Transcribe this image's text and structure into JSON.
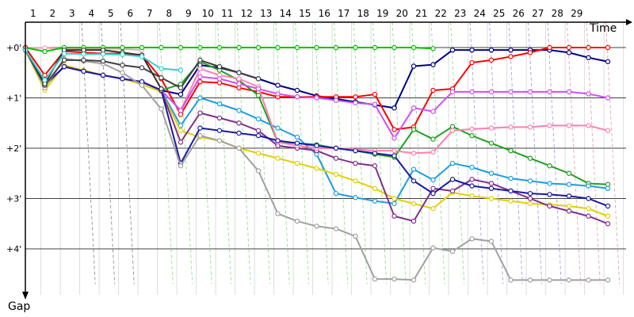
{
  "chart_data": {
    "type": "line",
    "xlabel": "Time",
    "ylabel": "Gap",
    "lap_labels": [
      "1",
      "2",
      "3",
      "4",
      "5",
      "6",
      "7",
      "8",
      "9",
      "10",
      "11",
      "12",
      "13",
      "14",
      "15",
      "16",
      "17",
      "18",
      "19",
      "20",
      "21",
      "22",
      "23",
      "24",
      "25",
      "26",
      "27",
      "28",
      "29"
    ],
    "y_tick_labels": [
      "+0'",
      "+1'",
      "+2'",
      "+3'",
      "+4'"
    ],
    "y_ticks": [
      0,
      1,
      2,
      3,
      4
    ],
    "ylim": [
      0,
      5.0
    ],
    "xlim": [
      0,
      30.4
    ],
    "grid": true,
    "series": [
      {
        "color": "#e8a8b8",
        "x": [
          0,
          1,
          2,
          3,
          4,
          5,
          6
        ],
        "y": [
          0.01,
          0.01,
          0.02,
          0.02,
          0.02,
          0.03,
          0.05
        ]
      },
      {
        "color": "#00c000",
        "x": [
          0,
          1,
          2,
          3,
          4,
          5,
          6,
          7,
          8,
          9,
          10,
          11,
          12,
          13,
          14,
          15,
          16,
          17,
          18,
          19,
          20,
          21
        ],
        "y": [
          0,
          0.08,
          0,
          0,
          0,
          0,
          0,
          0,
          0,
          0,
          0,
          0,
          0,
          0,
          0,
          0,
          0,
          0,
          0,
          0,
          0,
          0.02
        ]
      },
      {
        "color": "#000080",
        "x": [
          0,
          1,
          2,
          3,
          4,
          5,
          6,
          7,
          8,
          9,
          10,
          11,
          12,
          13,
          14,
          15,
          16,
          17,
          18,
          19,
          20,
          21,
          22,
          23,
          24,
          25,
          26,
          27,
          28,
          29,
          30
        ],
        "y": [
          0.05,
          0.75,
          0.38,
          0.47,
          0.55,
          0.62,
          0.68,
          0.85,
          0.93,
          0.35,
          0.4,
          0.5,
          0.62,
          0.75,
          0.85,
          0.96,
          1.02,
          1.08,
          1.14,
          1.2,
          0.37,
          0.34,
          0.05,
          0.05,
          0.05,
          0.05,
          0.05,
          0.05,
          0.1,
          0.2,
          0.28
        ]
      },
      {
        "color": "#ff0000",
        "x": [
          0,
          1,
          2,
          3,
          4,
          5,
          6,
          7,
          8,
          9,
          10,
          11,
          12,
          13,
          14,
          15,
          16,
          17,
          18,
          19,
          20,
          21,
          22,
          23,
          24,
          25,
          26,
          27,
          28,
          29,
          30
        ],
        "y": [
          0,
          0.55,
          0.07,
          0.1,
          0.12,
          0.12,
          0.15,
          0.62,
          1.33,
          0.68,
          0.7,
          0.8,
          0.88,
          0.98,
          0.98,
          0.98,
          0.98,
          0.98,
          0.93,
          1.63,
          1.58,
          0.85,
          0.82,
          0.3,
          0.25,
          0.18,
          0.1,
          0,
          0,
          0,
          0
        ]
      },
      {
        "color": "#20a020",
        "x": [
          0,
          1,
          2,
          3,
          4,
          5,
          6,
          7,
          8,
          9,
          10,
          11,
          12,
          13,
          14,
          15,
          16,
          17,
          18,
          19,
          20,
          21,
          22,
          23,
          24,
          25,
          26,
          27,
          28,
          29,
          30
        ],
        "y": [
          0.05,
          0.75,
          0.38,
          0.47,
          0.55,
          0.62,
          0.68,
          0.85,
          0.73,
          0.28,
          0.45,
          0.65,
          0.95,
          1.88,
          1.9,
          1.93,
          2.0,
          2.05,
          2.12,
          2.18,
          1.63,
          1.82,
          1.57,
          1.75,
          1.9,
          2.05,
          2.2,
          2.35,
          2.5,
          2.7,
          2.72
        ]
      },
      {
        "color": "#1e9de0",
        "x": [
          0,
          1,
          2,
          3,
          4,
          5,
          6,
          7,
          8,
          9,
          10,
          11,
          12,
          13,
          14,
          15,
          16,
          17,
          18,
          19,
          20,
          21,
          22,
          23,
          24,
          25,
          26,
          27,
          28,
          29,
          30
        ],
        "y": [
          0.05,
          0.75,
          0.38,
          0.47,
          0.55,
          0.62,
          0.68,
          0.85,
          1.55,
          1.0,
          1.12,
          1.25,
          1.42,
          1.6,
          1.78,
          2.12,
          2.9,
          2.98,
          3.05,
          3.1,
          2.42,
          2.63,
          2.3,
          2.38,
          2.5,
          2.6,
          2.65,
          2.7,
          2.72,
          2.75,
          2.8
        ]
      },
      {
        "color": "#e0d000",
        "x": [
          0,
          1,
          2,
          3,
          4,
          5,
          6,
          7,
          8,
          9,
          10,
          11,
          12,
          13,
          14,
          15,
          16,
          17,
          18,
          19,
          20,
          21,
          22,
          23,
          24,
          25,
          26,
          27,
          28,
          29,
          30
        ],
        "y": [
          0.05,
          0.85,
          0.35,
          0.45,
          0.55,
          0.62,
          0.73,
          0.88,
          1.65,
          1.78,
          1.85,
          2.0,
          2.1,
          2.2,
          2.3,
          2.4,
          2.52,
          2.65,
          2.8,
          3.0,
          3.1,
          3.2,
          2.88,
          2.95,
          3.0,
          3.05,
          3.1,
          3.12,
          3.15,
          3.2,
          3.35
        ]
      },
      {
        "color": "#80308a",
        "x": [
          0,
          1,
          2,
          3,
          4,
          5,
          6,
          7,
          8,
          9,
          10,
          11,
          12,
          13,
          14,
          15,
          16,
          17,
          18,
          19,
          20,
          21,
          22,
          23,
          24,
          25,
          26,
          27,
          28,
          29,
          30
        ],
        "y": [
          0.05,
          0.75,
          0.38,
          0.47,
          0.55,
          0.62,
          0.68,
          0.85,
          1.88,
          1.3,
          1.4,
          1.5,
          1.65,
          1.95,
          2.0,
          2.05,
          2.2,
          2.3,
          2.35,
          3.35,
          3.45,
          2.8,
          2.85,
          2.62,
          2.7,
          2.85,
          3.0,
          3.15,
          3.25,
          3.35,
          3.5
        ]
      },
      {
        "color": "#ff80b0",
        "x": [
          0,
          1,
          2,
          3,
          4,
          5,
          6,
          7,
          8,
          9,
          10,
          11,
          12,
          13,
          14,
          15,
          16,
          17,
          18,
          19,
          20,
          21,
          22,
          23,
          24,
          25,
          26,
          27,
          28,
          29,
          30
        ],
        "y": [
          0.05,
          0.75,
          0.38,
          0.47,
          0.55,
          0.62,
          0.68,
          0.85,
          1.25,
          0.42,
          0.55,
          0.62,
          0.78,
          1.88,
          1.95,
          2.0,
          2.0,
          2.02,
          2.05,
          2.05,
          2.1,
          2.08,
          1.65,
          1.62,
          1.6,
          1.58,
          1.58,
          1.55,
          1.55,
          1.55,
          1.65
        ]
      },
      {
        "color": "#d050f0",
        "x": [
          0,
          1,
          2,
          3,
          4,
          5,
          6,
          7,
          8,
          9,
          10,
          11,
          12,
          13,
          14,
          15,
          16,
          17,
          18,
          19,
          20,
          21,
          22,
          23,
          24,
          25,
          26,
          27,
          28,
          29,
          30
        ],
        "y": [
          0.05,
          0.75,
          0.38,
          0.47,
          0.55,
          0.62,
          0.68,
          0.85,
          1.25,
          0.58,
          0.62,
          0.72,
          0.82,
          0.92,
          0.98,
          1.0,
          1.05,
          1.1,
          1.13,
          1.8,
          1.2,
          1.27,
          0.88,
          0.88,
          0.88,
          0.88,
          0.88,
          0.88,
          0.88,
          0.92,
          1.0
        ]
      },
      {
        "color": "#1a1aa0",
        "x": [
          0,
          1,
          2,
          3,
          4,
          5,
          6,
          7,
          8,
          9,
          10,
          11,
          12,
          13,
          14,
          15,
          16,
          17,
          18,
          19,
          20,
          21,
          22,
          23,
          24,
          25,
          26,
          27,
          28,
          29,
          30
        ],
        "y": [
          0.05,
          0.75,
          0.38,
          0.47,
          0.55,
          0.62,
          0.68,
          0.85,
          2.3,
          1.6,
          1.65,
          1.7,
          1.75,
          1.85,
          1.9,
          1.95,
          2.0,
          2.05,
          2.1,
          2.15,
          2.65,
          2.9,
          2.62,
          2.75,
          2.8,
          2.85,
          2.9,
          2.92,
          2.95,
          3.0,
          3.15
        ]
      },
      {
        "color": "#a0a0a0",
        "x": [
          0,
          1,
          2,
          3,
          4,
          5,
          6,
          7,
          8,
          9,
          10,
          11,
          12,
          13,
          14,
          15,
          16,
          17,
          18,
          19,
          20,
          21,
          22,
          23,
          24,
          25,
          26,
          27,
          28,
          29,
          30
        ],
        "y": [
          0.05,
          0.8,
          0.22,
          0.27,
          0.32,
          0.5,
          0.75,
          1.22,
          2.35,
          1.75,
          1.85,
          2.0,
          2.45,
          3.3,
          3.45,
          3.55,
          3.6,
          3.75,
          4.6,
          4.6,
          4.62,
          3.98,
          4.05,
          3.8,
          3.85,
          4.62,
          4.62,
          4.62,
          4.62,
          4.62,
          4.62
        ]
      },
      {
        "color": "#404040",
        "x": [
          0,
          1,
          2,
          3,
          4,
          5,
          6,
          7,
          8,
          9,
          10,
          11,
          12
        ],
        "y": [
          0.05,
          0.75,
          0.25,
          0.25,
          0.27,
          0.35,
          0.4,
          0.6,
          0.8,
          0.25,
          0.38,
          0.5,
          0.62
        ]
      },
      {
        "color": "#303030",
        "x": [
          0,
          1,
          2,
          3,
          4,
          5,
          6,
          7
        ],
        "y": [
          0.05,
          0.72,
          0.05,
          0.05,
          0.05,
          0.1,
          0.15,
          0.82
        ]
      },
      {
        "color": "#30d0d0",
        "x": [
          0,
          1,
          2,
          3,
          4,
          5,
          6,
          7,
          8
        ],
        "y": [
          0.05,
          0.65,
          0.12,
          0.13,
          0.13,
          0.14,
          0.18,
          0.42,
          0.45
        ]
      }
    ]
  }
}
